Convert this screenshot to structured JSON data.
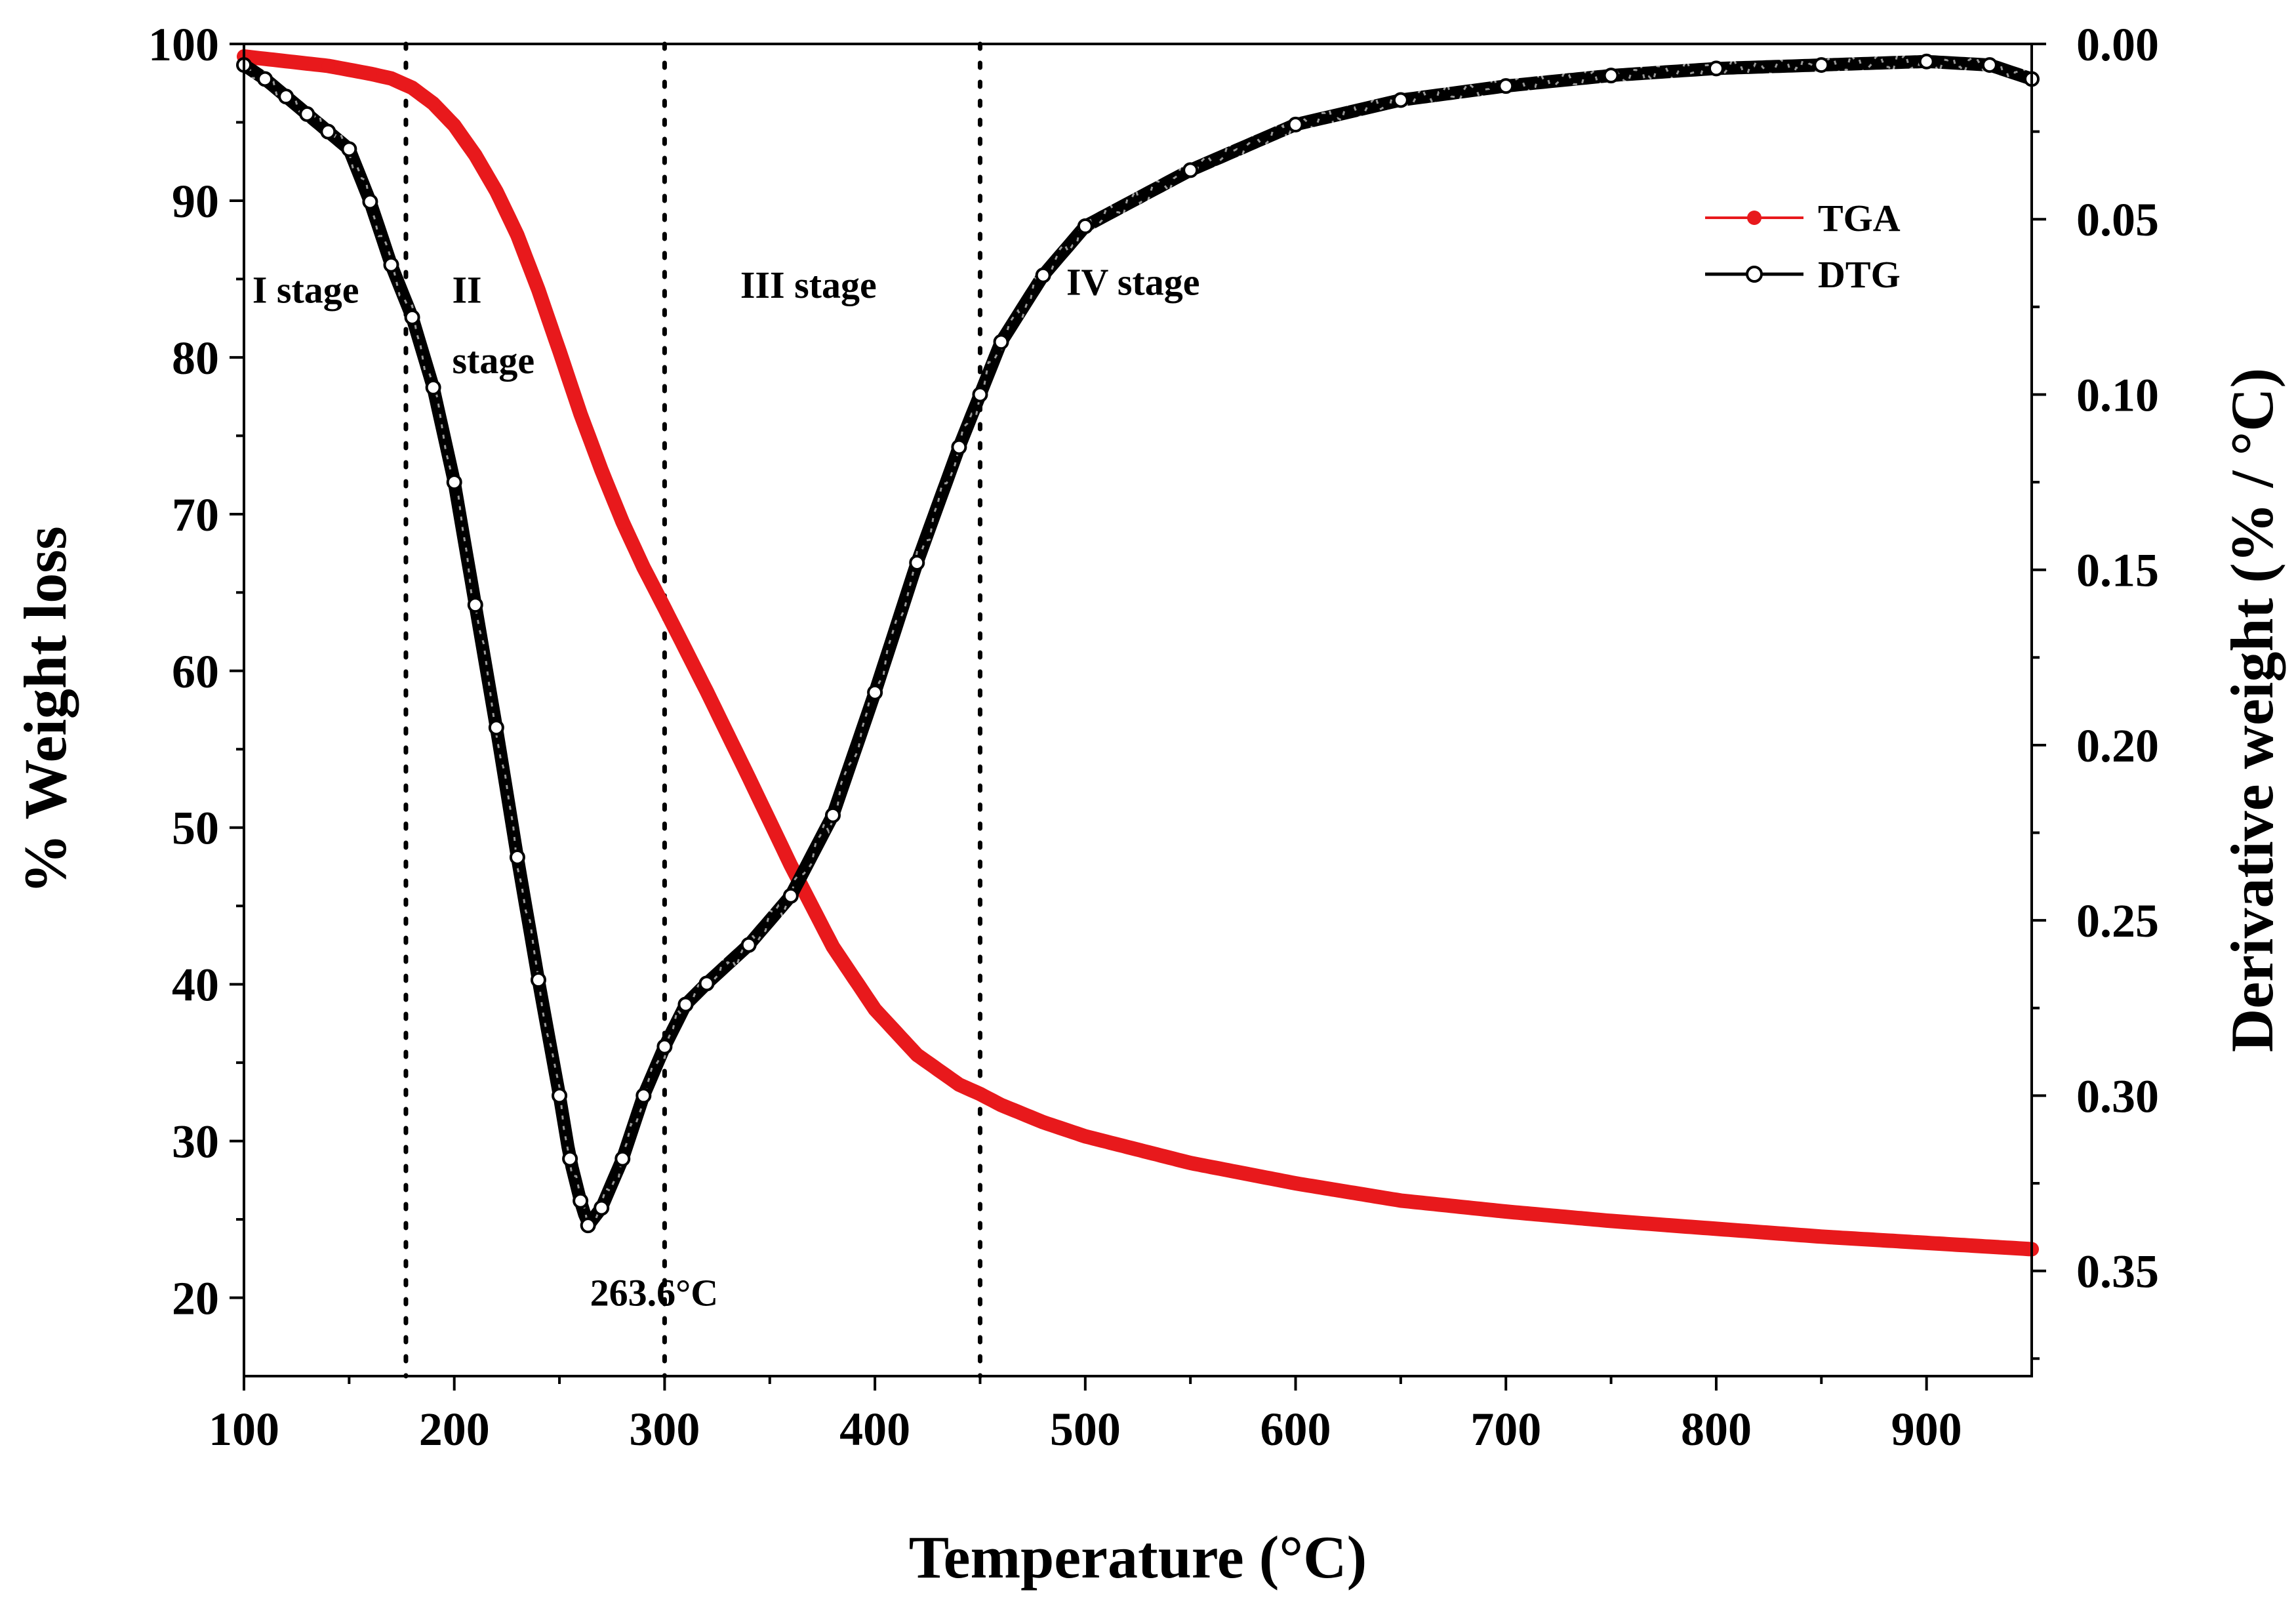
{
  "chart_data": {
    "type": "line",
    "title": "",
    "xlabel": "Temperature (°C)",
    "ylabel": "% Weight loss",
    "y2label": "Derivative weight (% / °C)",
    "xlim": [
      100,
      950
    ],
    "ylim": [
      15,
      100
    ],
    "y2lim": [
      0.38,
      0.0
    ],
    "x_ticks": [
      100,
      200,
      300,
      400,
      500,
      600,
      700,
      800,
      900
    ],
    "y_ticks": [
      20,
      30,
      40,
      50,
      60,
      70,
      80,
      90,
      100
    ],
    "y2_ticks": [
      "0.00",
      "0.05",
      "0.10",
      "0.15",
      "0.20",
      "0.25",
      "0.30",
      "0.35"
    ],
    "legend": {
      "position": "top-right",
      "entries": [
        "TGA",
        "DTG"
      ]
    },
    "stage_boundaries": [
      177,
      300,
      450
    ],
    "annotations": {
      "stage1": "I stage",
      "stage2a": "II",
      "stage2b": "stage",
      "stage3": "III stage",
      "stage4": "IV stage",
      "peak": "263.6°C"
    },
    "series": [
      {
        "name": "TGA",
        "axis": "left",
        "color": "#e8191c",
        "x": [
          100,
          120,
          140,
          160,
          170,
          180,
          190,
          200,
          210,
          220,
          230,
          240,
          250,
          260,
          270,
          280,
          290,
          300,
          320,
          340,
          360,
          380,
          400,
          420,
          440,
          450,
          460,
          480,
          500,
          550,
          600,
          650,
          700,
          750,
          800,
          850,
          900,
          950
        ],
        "y": [
          99.2,
          98.9,
          98.6,
          98.1,
          97.8,
          97.2,
          96.2,
          94.8,
          92.9,
          90.6,
          87.8,
          84.3,
          80.4,
          76.4,
          72.8,
          69.5,
          66.6,
          64.0,
          58.7,
          53.2,
          47.6,
          42.4,
          38.4,
          35.5,
          33.6,
          33.0,
          32.3,
          31.2,
          30.3,
          28.6,
          27.3,
          26.2,
          25.5,
          24.9,
          24.4,
          23.9,
          23.5,
          23.1
        ]
      },
      {
        "name": "DTG",
        "axis": "right",
        "color": "#000000",
        "x": [
          100,
          110,
          120,
          130,
          140,
          150,
          160,
          170,
          180,
          190,
          200,
          210,
          220,
          230,
          240,
          250,
          255,
          260,
          263.6,
          270,
          280,
          290,
          300,
          310,
          320,
          340,
          360,
          380,
          400,
          420,
          440,
          450,
          460,
          480,
          500,
          550,
          600,
          650,
          700,
          750,
          800,
          850,
          900,
          930,
          950
        ],
        "y": [
          0.006,
          0.01,
          0.015,
          0.02,
          0.025,
          0.03,
          0.045,
          0.063,
          0.078,
          0.098,
          0.125,
          0.16,
          0.195,
          0.232,
          0.267,
          0.3,
          0.318,
          0.33,
          0.337,
          0.332,
          0.318,
          0.3,
          0.286,
          0.274,
          0.268,
          0.257,
          0.243,
          0.22,
          0.185,
          0.148,
          0.115,
          0.1,
          0.085,
          0.066,
          0.052,
          0.036,
          0.023,
          0.016,
          0.012,
          0.009,
          0.007,
          0.006,
          0.005,
          0.006,
          0.01
        ]
      }
    ]
  }
}
